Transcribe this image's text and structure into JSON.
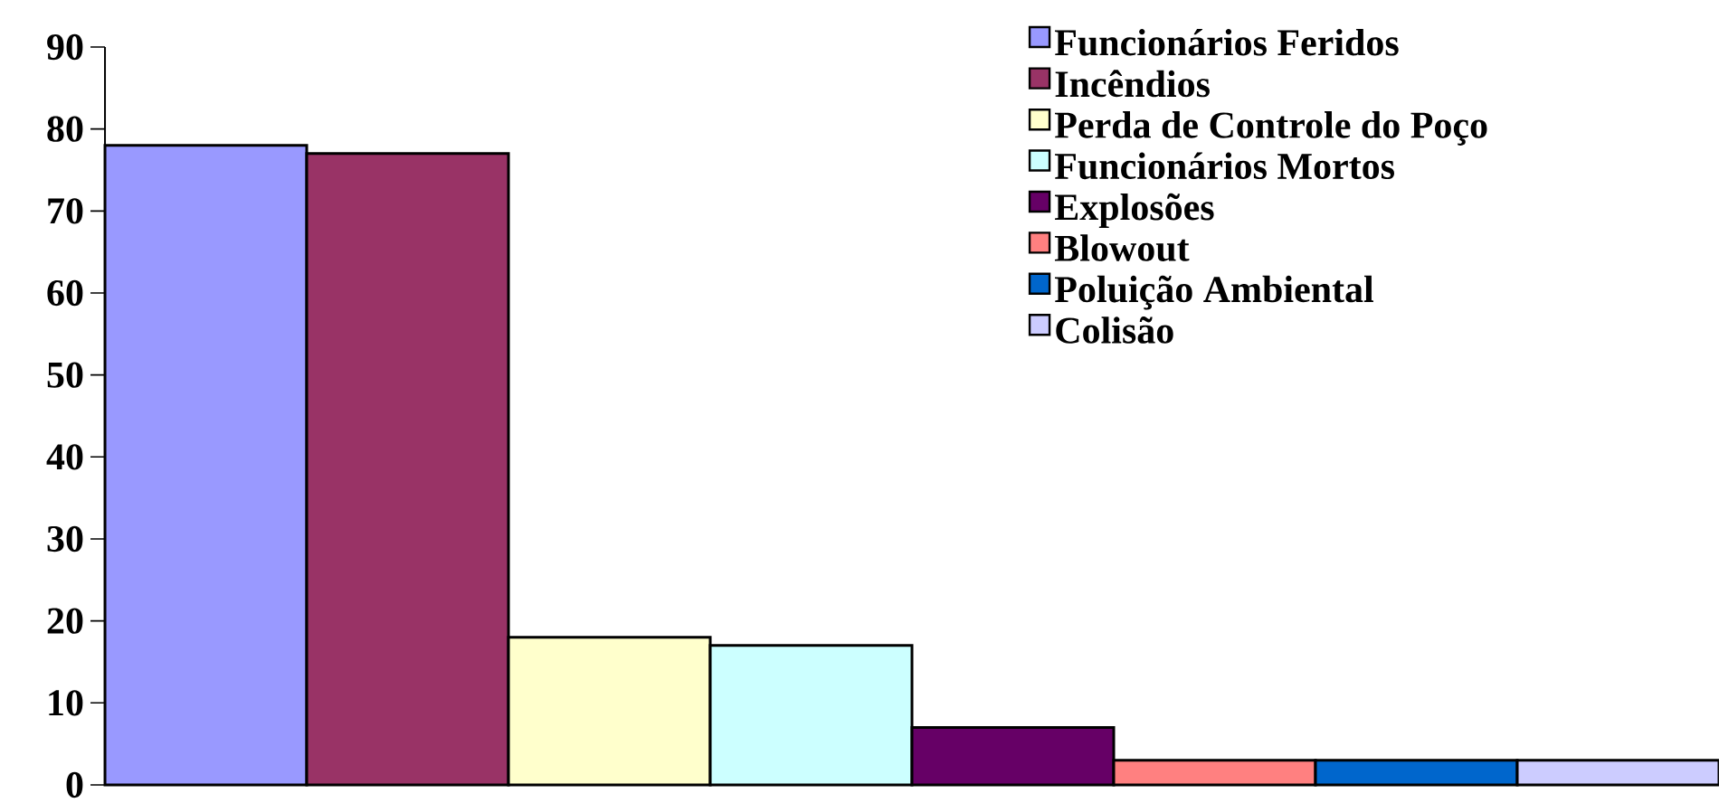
{
  "chart_data": {
    "type": "bar",
    "categories": [
      null
    ],
    "series": [
      {
        "name": "Funcionários Feridos",
        "color": "#9999ff",
        "values": [
          78
        ]
      },
      {
        "name": "Incêndios",
        "color": "#993366",
        "values": [
          77
        ]
      },
      {
        "name": "Perda de Controle do Poço",
        "color": "#ffffcc",
        "values": [
          18
        ]
      },
      {
        "name": "Funcionários  Mortos",
        "color": "#ccffff",
        "values": [
          17
        ]
      },
      {
        "name": "Explosões",
        "color": "#660066",
        "values": [
          7
        ]
      },
      {
        "name": "Blowout",
        "color": "#ff8080",
        "values": [
          3
        ]
      },
      {
        "name": "Poluição Ambiental",
        "color": "#0066cc",
        "values": [
          3
        ]
      },
      {
        "name": "Colisão",
        "color": "#ccccff",
        "values": [
          3
        ]
      }
    ],
    "ylim": [
      0,
      90
    ],
    "yticks": [
      0,
      10,
      20,
      30,
      40,
      50,
      60,
      70,
      80,
      90
    ],
    "legend": "top right",
    "grid": false
  }
}
